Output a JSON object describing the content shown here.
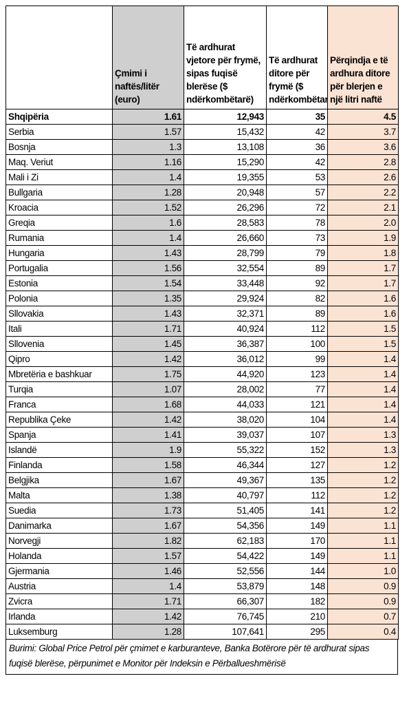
{
  "table": {
    "header": [
      "Çmimi i naftës/litër (euro)",
      "Të ardhurat vjetore për frymë, sipas fuqisë blerëse ($ ndërkombëtarë)",
      "Të ardhurat ditore për frymë ($ ndërkombëtarë)",
      "Përqindja e të ardhura ditore për blerjen e një litri naftë"
    ],
    "rows": [
      [
        "Shqipëria",
        "1.61",
        "12,943",
        "35",
        "4.5"
      ],
      [
        "Serbia",
        "1.57",
        "15,432",
        "42",
        "3.7"
      ],
      [
        "Bosnja",
        "1.3",
        "13,108",
        "36",
        "3.6"
      ],
      [
        "Maq. Veriut",
        "1.16",
        "15,290",
        "42",
        "2.8"
      ],
      [
        "Mali i Zi",
        "1.4",
        "19,355",
        "53",
        "2.6"
      ],
      [
        "Bullgaria",
        "1.28",
        "20,948",
        "57",
        "2.2"
      ],
      [
        "Kroacia",
        "1.52",
        "26,296",
        "72",
        "2.1"
      ],
      [
        "Greqia",
        "1.6",
        "28,583",
        "78",
        "2.0"
      ],
      [
        "Rumania",
        "1.4",
        "26,660",
        "73",
        "1.9"
      ],
      [
        "Hungaria",
        "1.43",
        "28,799",
        "79",
        "1.8"
      ],
      [
        "Portugalia",
        "1.56",
        "32,554",
        "89",
        "1.7"
      ],
      [
        "Estonia",
        "1.54",
        "33,448",
        "92",
        "1.7"
      ],
      [
        "Polonia",
        "1.35",
        "29,924",
        "82",
        "1.6"
      ],
      [
        "Sllovakia",
        "1.43",
        "32,371",
        "89",
        "1.6"
      ],
      [
        "Itali",
        "1.71",
        "40,924",
        "112",
        "1.5"
      ],
      [
        "Sllovenia",
        "1.45",
        "36,387",
        "100",
        "1.5"
      ],
      [
        "Qipro",
        "1.42",
        "36,012",
        "99",
        "1.4"
      ],
      [
        "Mbretëria e bashkuar",
        "1.75",
        "44,920",
        "123",
        "1.4"
      ],
      [
        "Turqia",
        "1.07",
        "28,002",
        "77",
        "1.4"
      ],
      [
        "Franca",
        "1.68",
        "44,033",
        "121",
        "1.4"
      ],
      [
        "Republika Çeke",
        "1.42",
        "38,020",
        "104",
        "1.4"
      ],
      [
        "Spanja",
        "1.41",
        "39,037",
        "107",
        "1.3"
      ],
      [
        "Islandë",
        "1.9",
        "55,322",
        "152",
        "1.3"
      ],
      [
        "Finlanda",
        "1.58",
        "46,344",
        "127",
        "1.2"
      ],
      [
        "Belgjika",
        "1.67",
        "49,367",
        "135",
        "1.2"
      ],
      [
        "Malta",
        "1.38",
        "40,797",
        "112",
        "1.2"
      ],
      [
        "Suedia",
        "1.73",
        "51,405",
        "141",
        "1.2"
      ],
      [
        "Danimarka",
        "1.67",
        "54,356",
        "149",
        "1.1"
      ],
      [
        "Norvegji",
        "1.82",
        "62,183",
        "170",
        "1.1"
      ],
      [
        "Holanda",
        "1.57",
        "54,422",
        "149",
        "1.1"
      ],
      [
        "Gjermania",
        "1.46",
        "52,556",
        "144",
        "1.0"
      ],
      [
        "Austria",
        "1.4",
        "53,879",
        "148",
        "0.9"
      ],
      [
        "Zvicra",
        "1.71",
        "66,307",
        "182",
        "0.9"
      ],
      [
        "Irlanda",
        "1.42",
        "76,745",
        "210",
        "0.7"
      ],
      [
        "Luksemburg",
        "1.28",
        "107,641",
        "295",
        "0.4"
      ]
    ],
    "footer": "Burimi: Global Price Petrol për çmimet e karburanteve, Banka Botërore për të ardhurat sipas fuqisë blerëse, përpunimet e Monitor për Indeksin e Përballueshmërisë"
  }
}
